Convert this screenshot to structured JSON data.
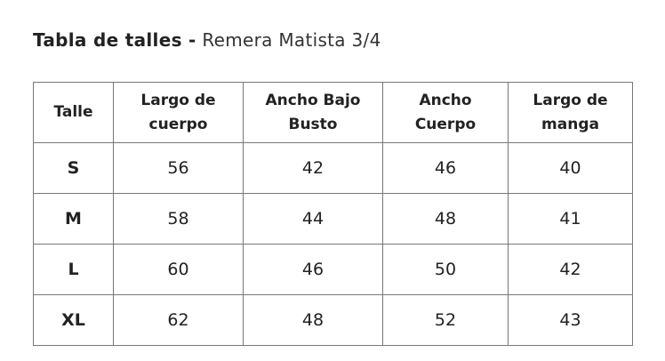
{
  "header": {
    "title_bold": "Tabla de talles -",
    "title_rest": "Remera Matista 3/4"
  },
  "table": {
    "columns": [
      [
        "Talle"
      ],
      [
        "Largo de",
        "cuerpo"
      ],
      [
        "Ancho Bajo",
        "Busto"
      ],
      [
        "Ancho",
        "Cuerpo"
      ],
      [
        "Largo de",
        "manga"
      ]
    ],
    "rows": [
      [
        "S",
        56,
        42,
        46,
        40
      ],
      [
        "M",
        58,
        44,
        48,
        41
      ],
      [
        "L",
        60,
        46,
        50,
        42
      ],
      [
        "XL",
        62,
        48,
        52,
        43
      ]
    ]
  }
}
